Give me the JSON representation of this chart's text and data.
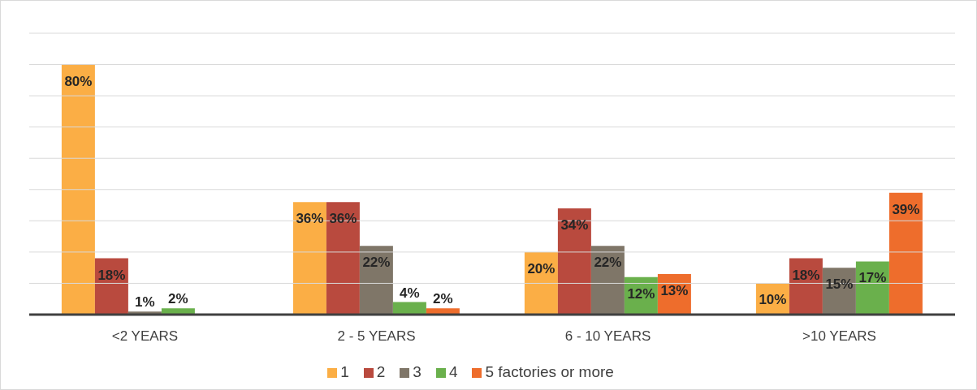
{
  "chart_data": {
    "type": "bar",
    "categories": [
      "<2 YEARS",
      "2 - 5 YEARS",
      "6 - 10 YEARS",
      ">10 YEARS"
    ],
    "series": [
      {
        "name": "1",
        "color": "#fbae45",
        "values": [
          80,
          36,
          20,
          10
        ],
        "value_labels": [
          "80%",
          "36%",
          "20%",
          "10%"
        ]
      },
      {
        "name": "2",
        "color": "#b94a3e",
        "values": [
          18,
          36,
          34,
          18
        ],
        "value_labels": [
          "18%",
          "36%",
          "34%",
          "18%"
        ]
      },
      {
        "name": "3",
        "color": "#7f7668",
        "values": [
          1,
          22,
          22,
          15
        ],
        "value_labels": [
          "1%",
          "22%",
          "22%",
          "15%"
        ]
      },
      {
        "name": "4",
        "color": "#6ab04c",
        "values": [
          2,
          4,
          12,
          17
        ],
        "value_labels": [
          "2%",
          "4%",
          "12%",
          "17%"
        ]
      },
      {
        "name": "5 factories or more",
        "color": "#ee6d2c",
        "values": [
          null,
          2,
          13,
          39
        ],
        "value_labels": [
          null,
          "2%",
          "13%",
          "39%"
        ]
      }
    ],
    "ylim": [
      0,
      90
    ],
    "yticks": [
      {
        "value": 0,
        "label": null
      },
      {
        "value": 10,
        "label": null
      },
      {
        "value": 20,
        "label": null
      },
      {
        "value": 30,
        "label": null
      },
      {
        "value": 40,
        "label": null
      },
      {
        "value": 50,
        "label": null
      },
      {
        "value": 60,
        "label": null
      },
      {
        "value": 70,
        "label": null
      },
      {
        "value": 80,
        "label": null
      },
      {
        "value": 90,
        "label": null
      }
    ],
    "tick_labels": "x",
    "grid": "y",
    "legend": "bottom"
  }
}
